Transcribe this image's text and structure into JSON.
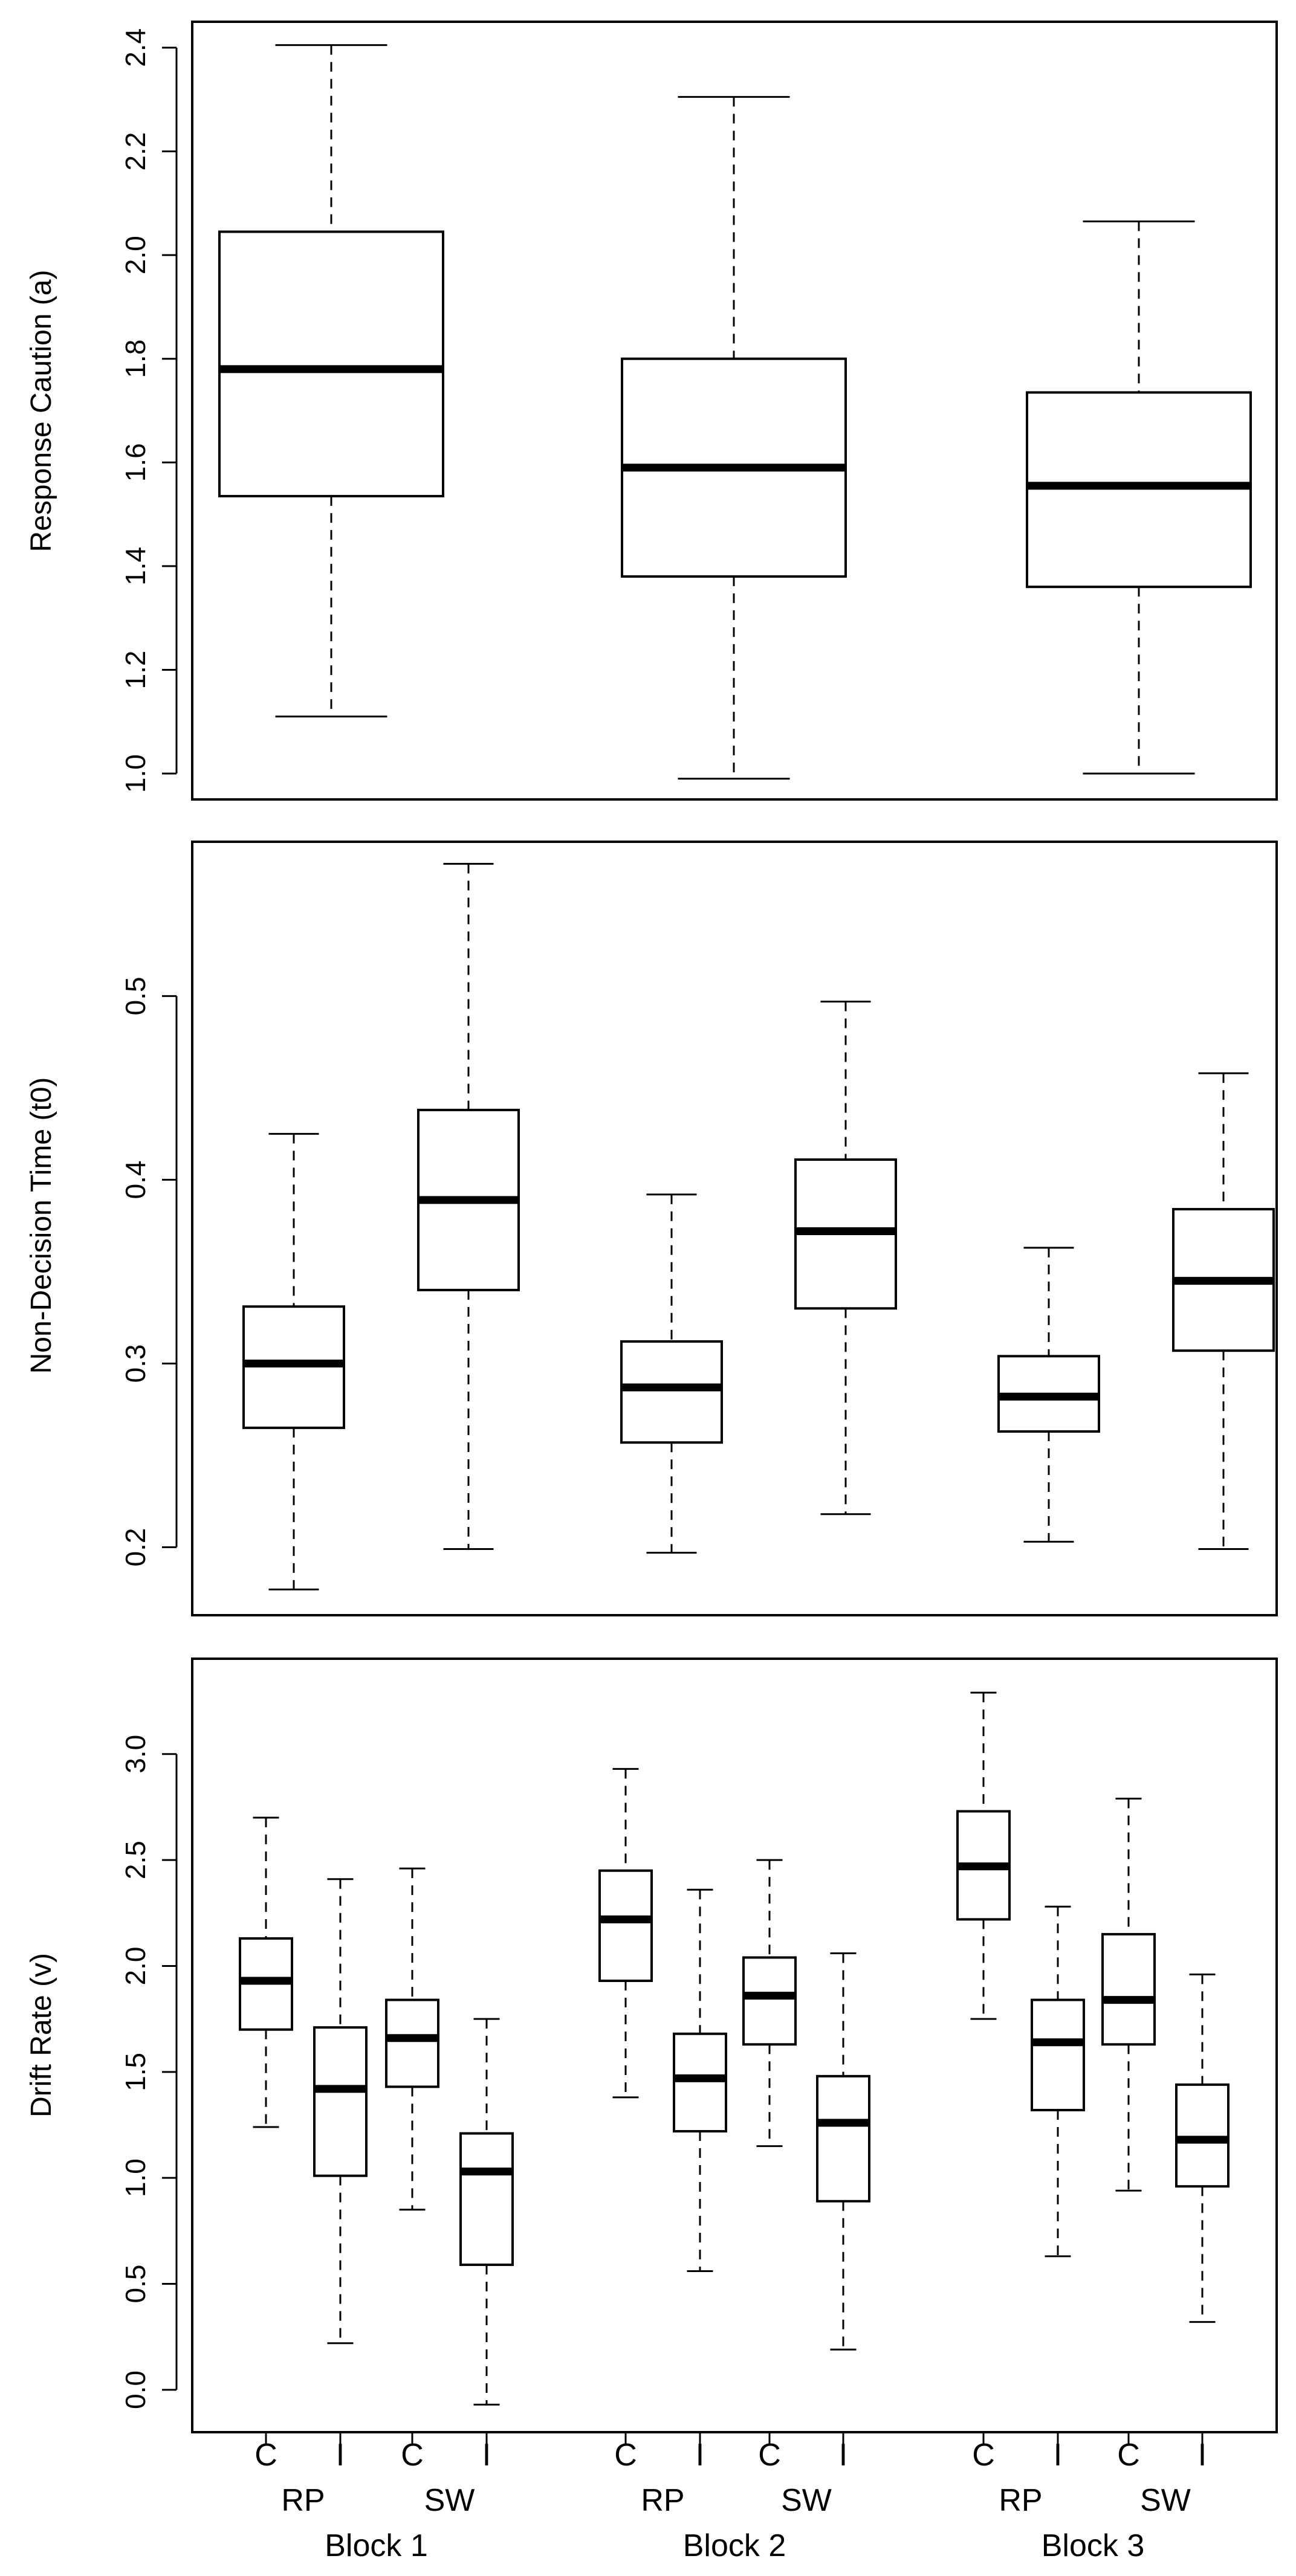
{
  "chart_data": [
    {
      "type": "boxplot",
      "ylabel": "Response Caution (a)",
      "ylim": [
        0.95,
        2.45
      ],
      "yticks": [
        "1.0",
        "1.2",
        "1.4",
        "1.6",
        "1.8",
        "2.0",
        "2.2",
        "2.4"
      ],
      "boxes": [
        {
          "group": "Block 1",
          "min": 1.11,
          "q1": 1.535,
          "median": 1.78,
          "q3": 2.045,
          "max": 2.405
        },
        {
          "group": "Block 2",
          "min": 0.99,
          "q1": 1.38,
          "median": 1.59,
          "q3": 1.8,
          "max": 2.305
        },
        {
          "group": "Block 3",
          "min": 1.0,
          "q1": 1.36,
          "median": 1.555,
          "q3": 1.735,
          "max": 2.065
        }
      ]
    },
    {
      "type": "boxplot",
      "ylabel": "Non-Decision Time (t0)",
      "ylim": [
        0.163,
        0.584
      ],
      "yticks": [
        "0.2",
        "0.3",
        "0.4",
        "0.5"
      ],
      "boxes": [
        {
          "group": "Block 1",
          "condition": "RP",
          "min": 0.177,
          "q1": 0.265,
          "median": 0.3,
          "q3": 0.331,
          "max": 0.425
        },
        {
          "group": "Block 1",
          "condition": "SW",
          "min": 0.199,
          "q1": 0.34,
          "median": 0.389,
          "q3": 0.438,
          "max": 0.572
        },
        {
          "group": "Block 2",
          "condition": "RP",
          "min": 0.197,
          "q1": 0.257,
          "median": 0.287,
          "q3": 0.312,
          "max": 0.392
        },
        {
          "group": "Block 2",
          "condition": "SW",
          "min": 0.218,
          "q1": 0.33,
          "median": 0.372,
          "q3": 0.411,
          "max": 0.497
        },
        {
          "group": "Block 3",
          "condition": "RP",
          "min": 0.203,
          "q1": 0.263,
          "median": 0.282,
          "q3": 0.304,
          "max": 0.363
        },
        {
          "group": "Block 3",
          "condition": "SW",
          "min": 0.199,
          "q1": 0.307,
          "median": 0.345,
          "q3": 0.384,
          "max": 0.458
        }
      ]
    },
    {
      "type": "boxplot",
      "ylabel": "Drift Rate (v)",
      "ylim": [
        -0.2,
        3.45
      ],
      "yticks": [
        "0.0",
        "0.5",
        "1.0",
        "1.5",
        "2.0",
        "2.5",
        "3.0"
      ],
      "boxes": [
        {
          "group": "Block 1",
          "condition": "RP",
          "item": "C",
          "min": 1.24,
          "q1": 1.7,
          "median": 1.93,
          "q3": 2.13,
          "max": 2.7
        },
        {
          "group": "Block 1",
          "condition": "RP",
          "item": "I",
          "min": 0.22,
          "q1": 1.01,
          "median": 1.42,
          "q3": 1.71,
          "max": 2.41
        },
        {
          "group": "Block 1",
          "condition": "SW",
          "item": "C",
          "min": 0.85,
          "q1": 1.43,
          "median": 1.66,
          "q3": 1.84,
          "max": 2.46
        },
        {
          "group": "Block 1",
          "condition": "SW",
          "item": "I",
          "min": -0.07,
          "q1": 0.59,
          "median": 1.03,
          "q3": 1.21,
          "max": 1.75
        },
        {
          "group": "Block 2",
          "condition": "RP",
          "item": "C",
          "min": 1.38,
          "q1": 1.93,
          "median": 2.22,
          "q3": 2.45,
          "max": 2.93
        },
        {
          "group": "Block 2",
          "condition": "RP",
          "item": "I",
          "min": 0.56,
          "q1": 1.22,
          "median": 1.47,
          "q3": 1.68,
          "max": 2.36
        },
        {
          "group": "Block 2",
          "condition": "SW",
          "item": "C",
          "min": 1.15,
          "q1": 1.63,
          "median": 1.86,
          "q3": 2.04,
          "max": 2.5
        },
        {
          "group": "Block 2",
          "condition": "SW",
          "item": "I",
          "min": 0.19,
          "q1": 0.89,
          "median": 1.26,
          "q3": 1.48,
          "max": 2.06
        },
        {
          "group": "Block 3",
          "condition": "RP",
          "item": "C",
          "min": 1.75,
          "q1": 2.22,
          "median": 2.47,
          "q3": 2.73,
          "max": 3.29
        },
        {
          "group": "Block 3",
          "condition": "RP",
          "item": "I",
          "min": 0.63,
          "q1": 1.32,
          "median": 1.64,
          "q3": 1.84,
          "max": 2.28
        },
        {
          "group": "Block 3",
          "condition": "SW",
          "item": "C",
          "min": 0.94,
          "q1": 1.63,
          "median": 1.84,
          "q3": 2.15,
          "max": 2.79
        },
        {
          "group": "Block 3",
          "condition": "SW",
          "item": "I",
          "min": 0.32,
          "q1": 0.96,
          "median": 1.18,
          "q3": 1.44,
          "max": 1.96
        }
      ],
      "item_labels": [
        "C",
        "I",
        "C",
        "I",
        "C",
        "I",
        "C",
        "I",
        "C",
        "I",
        "C",
        "I"
      ],
      "condition_labels": [
        "RP",
        "SW",
        "RP",
        "SW",
        "RP",
        "SW"
      ],
      "group_labels": [
        "Block 1",
        "Block 2",
        "Block 3"
      ]
    }
  ]
}
